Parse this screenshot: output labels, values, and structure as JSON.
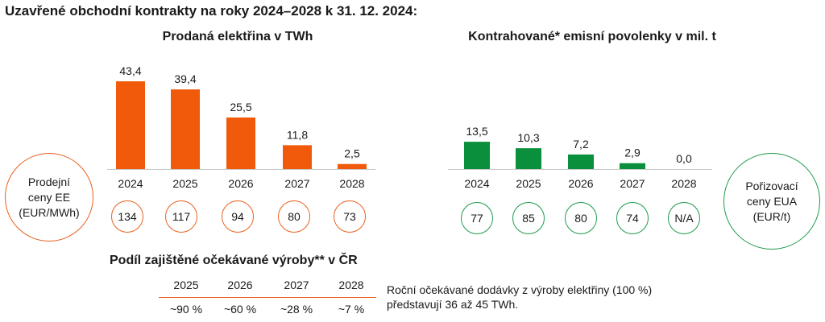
{
  "title": "Uzavřené obchodní kontrakty na roky 2024–2028 k 31. 12. 2024:",
  "chart_data": [
    {
      "type": "bar",
      "title": "Prodaná elektřina v TWh",
      "categories": [
        "2024",
        "2025",
        "2026",
        "2027",
        "2028"
      ],
      "values": [
        43.4,
        39.4,
        25.5,
        11.8,
        2.5
      ],
      "data_labels": [
        "43,4",
        "39,4",
        "25,5",
        "11,8",
        "2,5"
      ],
      "color": "#f05a0a",
      "ylim": [
        0,
        45
      ],
      "grid": false
    },
    {
      "type": "bar",
      "title": "Kontrahované* emisní povolenky v mil. t",
      "categories": [
        "2024",
        "2025",
        "2026",
        "2027",
        "2028"
      ],
      "values": [
        13.5,
        10.3,
        7.2,
        2.9,
        0.0
      ],
      "data_labels": [
        "13,5",
        "10,3",
        "7,2",
        "2,9",
        "0,0"
      ],
      "color": "#0a8f3d",
      "ylim": [
        0,
        45
      ],
      "grid": false
    }
  ],
  "prices_ee": {
    "label_lines": [
      "Prodejní",
      "ceny EE",
      "(EUR/MWh)"
    ],
    "values": [
      "134",
      "117",
      "94",
      "80",
      "73"
    ],
    "color": "#e8601e"
  },
  "prices_eua": {
    "label_lines": [
      "Pořizovací",
      "ceny EUA",
      "(EUR/t)"
    ],
    "values": [
      "77",
      "85",
      "80",
      "74",
      "N/A"
    ],
    "color": "#1e9a4c"
  },
  "hedge": {
    "title": "Podíl zajištěné očekávané výroby** v ČR",
    "years": [
      "2025",
      "2026",
      "2027",
      "2028"
    ],
    "values": [
      "~90 %",
      "~60 %",
      "~28 %",
      "~7 %"
    ],
    "note_lines": [
      "Roční očekávané dodávky z výroby elektřiny (100 %)",
      "představují 36 až 45 TWh."
    ]
  }
}
